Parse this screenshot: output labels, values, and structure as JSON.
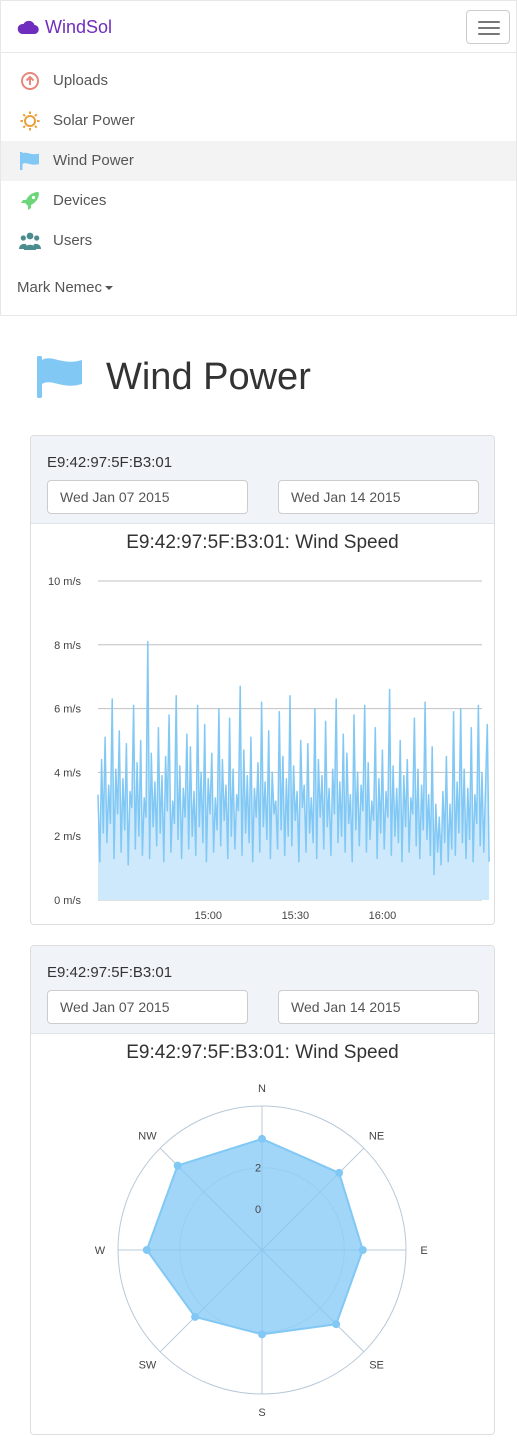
{
  "app": {
    "brand": "WindSol"
  },
  "nav": {
    "items": [
      {
        "label": "Uploads",
        "icon": "upload-icon"
      },
      {
        "label": "Solar Power",
        "icon": "sun-icon"
      },
      {
        "label": "Wind Power",
        "icon": "flag-icon",
        "active": true
      },
      {
        "label": "Devices",
        "icon": "rocket-icon"
      },
      {
        "label": "Users",
        "icon": "users-icon"
      }
    ],
    "user": "Mark Nemec"
  },
  "page": {
    "title": "Wind Power"
  },
  "colors": {
    "accent": "#6f2dbd",
    "wind": "#82c8f5",
    "wind_fill": "#cde9fb"
  },
  "panels": [
    {
      "device": "E9:42:97:5F:B3:01",
      "start": "Wed Jan 07 2015",
      "end": "Wed Jan 14 2015"
    },
    {
      "device": "E9:42:97:5F:B3:01",
      "start": "Wed Jan 07 2015",
      "end": "Wed Jan 14 2015"
    }
  ],
  "chart_data": [
    {
      "type": "area",
      "title": "E9:42:97:5F:B3:01: Wind Speed",
      "y_ticks": [
        "0 m/s",
        "2 m/s",
        "4 m/s",
        "6 m/s",
        "8 m/s",
        "10 m/s"
      ],
      "ylim": [
        0,
        10
      ],
      "x_ticks": [
        {
          "value": "15:00",
          "t": 62
        },
        {
          "value": "15:30",
          "t": 111
        },
        {
          "value": "16:00",
          "t": 160
        }
      ],
      "xlim": [
        0,
        216
      ],
      "series": [
        {
          "values": [
            3.3,
            1.2,
            4.4,
            2.1,
            5.1,
            1.8,
            3.6,
            2.4,
            6.3,
            1.3,
            4.1,
            2.7,
            5.3,
            1.5,
            3.8,
            2.2,
            4.9,
            1.1,
            3.4,
            2.9,
            6.1,
            1.6,
            4.3,
            2.0,
            5.0,
            1.4,
            3.2,
            2.6,
            8.1,
            1.3,
            4.6,
            2.3,
            3.7,
            1.7,
            5.4,
            2.1,
            3.9,
            1.2,
            4.5,
            2.8,
            5.8,
            1.5,
            3.1,
            2.4,
            6.4,
            1.9,
            4.2,
            1.3,
            3.5,
            2.6,
            5.2,
            1.6,
            4.8,
            2.0,
            3.4,
            1.4,
            6.1,
            2.3,
            4.0,
            1.8,
            5.5,
            1.2,
            3.8,
            2.7,
            4.6,
            1.5,
            3.2,
            2.2,
            6.0,
            1.7,
            4.4,
            2.5,
            3.6,
            1.3,
            5.7,
            2.0,
            4.1,
            1.6,
            3.3,
            2.8,
            6.7,
            1.4,
            4.7,
            2.1,
            3.9,
            1.8,
            5.1,
            1.2,
            3.5,
            2.6,
            4.3,
            1.5,
            6.2,
            2.3,
            3.7,
            1.9,
            5.3,
            1.3,
            4.0,
            2.7,
            3.1,
            1.6,
            5.9,
            2.2,
            4.5,
            1.4,
            3.8,
            2.0,
            6.4,
            1.7,
            4.2,
            2.5,
            3.4,
            1.2,
            5.0,
            2.9,
            3.6,
            1.5,
            4.9,
            2.1,
            3.2,
            1.8,
            6.0,
            1.3,
            4.4,
            2.6,
            3.9,
            1.6,
            5.6,
            2.3,
            3.5,
            1.4,
            4.1,
            2.7,
            6.3,
            1.8,
            3.7,
            2.0,
            5.2,
            1.5,
            4.6,
            2.4,
            3.3,
            1.2,
            5.8,
            2.2,
            4.0,
            1.7,
            3.6,
            2.8,
            6.1,
            1.5,
            4.3,
            1.9,
            3.1,
            2.5,
            5.4,
            1.3,
            3.8,
            2.1,
            4.7,
            1.6,
            3.4,
            2.6,
            6.6,
            1.4,
            4.2,
            2.0,
            3.5,
            1.8,
            5.0,
            1.2,
            3.9,
            2.3,
            4.4,
            1.5,
            3.2,
            2.7,
            5.7,
            1.7,
            4.1,
            1.3,
            3.6,
            2.2,
            6.2,
            1.9,
            3.3,
            1.4,
            4.8,
            0.8,
            3.0,
            1.5,
            2.6,
            1.1,
            3.4,
            1.8,
            4.5,
            1.2,
            3.0,
            1.6,
            5.9,
            1.4,
            3.7,
            2.1,
            6.0,
            1.8,
            4.1,
            1.3,
            3.5,
            1.9,
            5.4,
            1.2,
            3.3,
            2.4,
            6.1,
            1.7,
            4.0,
            1.5,
            3.6,
            5.5,
            1.2
          ]
        }
      ]
    },
    {
      "type": "radar",
      "title": "E9:42:97:5F:B3:01: Wind Speed",
      "categories": [
        "N",
        "NE",
        "E",
        "SE",
        "S",
        "SW",
        "W",
        "NW"
      ],
      "values": [
        3.4,
        3.3,
        2.9,
        3.1,
        2.1,
        2.6,
        3.6,
        3.8
      ],
      "r_ticks": [
        "0",
        "2"
      ],
      "rlim": [
        -2,
        5
      ]
    }
  ]
}
